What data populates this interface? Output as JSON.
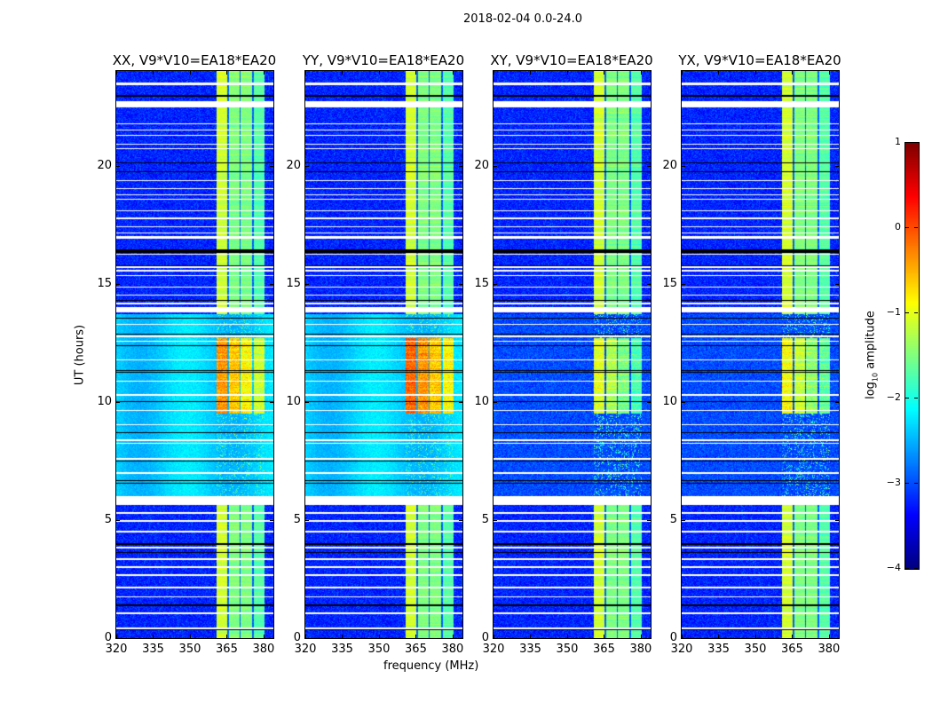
{
  "figure": {
    "suptitle": "2018-02-04 0.0-24.0",
    "ylabel": "UT (hours)",
    "xlabel": "frequency (MHz)",
    "colorbar": {
      "label_prefix": "log",
      "label_sub": "10",
      "label_suffix": " amplitude",
      "range": [
        -4,
        1
      ],
      "ticks": [
        "1",
        "0",
        "−1",
        "−2",
        "−3",
        "−4"
      ],
      "tick_values": [
        1,
        0,
        -1,
        -2,
        -3,
        -4
      ],
      "colormap": "jet"
    }
  },
  "chart_data": [
    {
      "type": "heatmap",
      "title": "XX, V9*V10=EA18*EA20",
      "pol": "parallel",
      "active_level": -0.35
    },
    {
      "type": "heatmap",
      "title": "YY, V9*V10=EA18*EA20",
      "pol": "parallel",
      "active_level": -0.1
    },
    {
      "type": "heatmap",
      "title": "XY, V9*V10=EA18*EA20",
      "pol": "cross",
      "active_level": -1.0
    },
    {
      "type": "heatmap",
      "title": "YX, V9*V10=EA18*EA20",
      "pol": "cross",
      "active_level": -0.9
    }
  ],
  "axes": {
    "xlim": [
      320,
      384
    ],
    "ylim": [
      0,
      24
    ],
    "xticks": [
      320,
      335,
      350,
      365,
      380
    ],
    "xtick_labels": [
      "320",
      "335",
      "350",
      "365",
      "380"
    ],
    "yticks": [
      0,
      5,
      10,
      15,
      20
    ],
    "ytick_labels": [
      "0",
      "5",
      "10",
      "15",
      "20"
    ]
  },
  "signal": {
    "channels_mhz": [
      [
        360.7,
        365.2
      ],
      [
        365.8,
        370.2
      ],
      [
        370.8,
        375.3
      ],
      [
        375.9,
        380.4
      ]
    ],
    "channel_levels": [
      -1.1,
      -1.5,
      -1.5,
      -1.7
    ],
    "background_level": -3.2,
    "quiet_region_ut": [
      6.0,
      13.7
    ],
    "quiet_level_parallel": -2.35,
    "quiet_level_cross": -3.0,
    "active_region_ut": [
      9.5,
      12.7
    ],
    "flagged_white_ut": [
      [
        23.4,
        23.5
      ],
      [
        22.45,
        22.72
      ],
      [
        21.74,
        21.79
      ],
      [
        21.48,
        21.53
      ],
      [
        21.25,
        21.3
      ],
      [
        20.88,
        20.93
      ],
      [
        20.68,
        20.73
      ],
      [
        19.34,
        19.39
      ],
      [
        19.0,
        19.05
      ],
      [
        18.74,
        18.79
      ],
      [
        18.55,
        18.6
      ],
      [
        18.06,
        18.11
      ],
      [
        17.72,
        17.82
      ],
      [
        17.38,
        17.43
      ],
      [
        17.13,
        17.18
      ],
      [
        16.9,
        17.0
      ],
      [
        16.22,
        16.28
      ],
      [
        15.68,
        15.73
      ],
      [
        15.53,
        15.57
      ],
      [
        15.33,
        15.38
      ],
      [
        14.84,
        14.89
      ],
      [
        14.48,
        14.52
      ],
      [
        14.13,
        14.18
      ],
      [
        13.8,
        14.02
      ],
      [
        13.26,
        13.31
      ],
      [
        12.74,
        12.79
      ],
      [
        12.55,
        12.6
      ],
      [
        11.76,
        11.81
      ],
      [
        10.86,
        10.91
      ],
      [
        10.26,
        10.31
      ],
      [
        9.62,
        9.67
      ],
      [
        9.02,
        9.07
      ],
      [
        8.35,
        8.4
      ],
      [
        8.23,
        8.28
      ],
      [
        7.56,
        7.61
      ],
      [
        6.96,
        7.01
      ],
      [
        5.62,
        6.0
      ],
      [
        5.27,
        5.32
      ],
      [
        4.93,
        4.98
      ],
      [
        4.48,
        4.53
      ],
      [
        3.81,
        3.86
      ],
      [
        3.32,
        3.37
      ],
      [
        2.98,
        3.03
      ],
      [
        2.64,
        2.69
      ],
      [
        2.1,
        2.16
      ],
      [
        1.71,
        1.76
      ],
      [
        1.03,
        1.08
      ],
      [
        0.39,
        0.44
      ]
    ],
    "flagged_black_ut": [
      [
        22.9,
        22.97
      ],
      [
        20.08,
        20.12
      ],
      [
        19.72,
        19.76
      ],
      [
        16.3,
        16.45
      ],
      [
        15.74,
        15.78
      ],
      [
        14.28,
        14.32
      ],
      [
        13.53,
        13.57
      ],
      [
        12.85,
        12.89
      ],
      [
        12.36,
        12.4
      ],
      [
        11.31,
        11.35
      ],
      [
        11.24,
        11.28
      ],
      [
        9.98,
        10.02
      ],
      [
        8.68,
        8.72
      ],
      [
        7.48,
        7.52
      ],
      [
        6.66,
        6.7
      ],
      [
        6.55,
        6.59
      ],
      [
        3.96,
        4.0
      ],
      [
        3.62,
        3.66
      ],
      [
        1.37,
        1.41
      ],
      [
        0.33,
        0.38
      ]
    ]
  }
}
